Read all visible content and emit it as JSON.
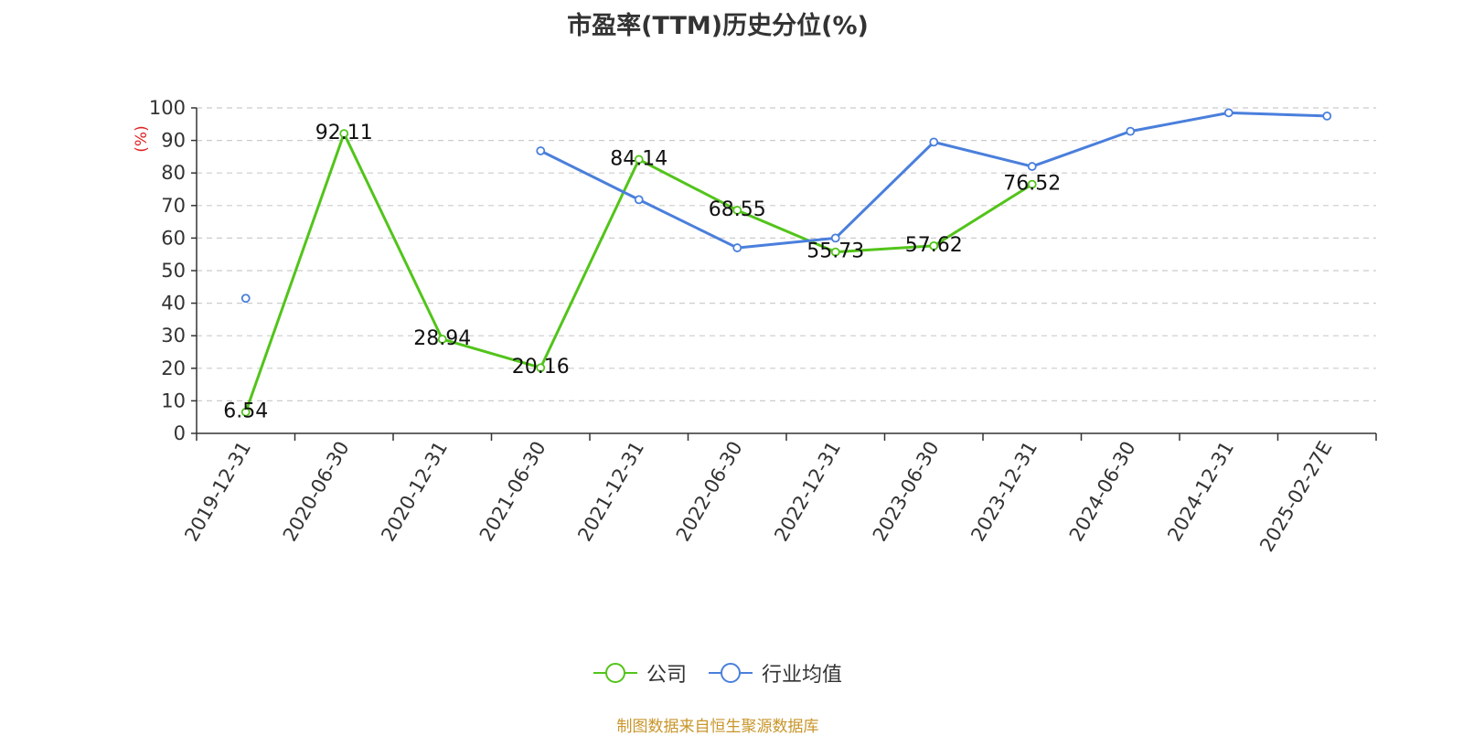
{
  "title": "市盈率(TTM)历史分位(%)",
  "source": "制图数据来自恒生聚源数据库",
  "colors": {
    "company": "#52c41a",
    "industry": "#4a7fdc",
    "unit": "#e02020"
  },
  "chart_data": {
    "type": "line",
    "title": "市盈率(TTM)历史分位(%)",
    "ylabel": "(%)",
    "ylim": [
      0,
      100
    ],
    "yticks": [
      0,
      10,
      20,
      30,
      40,
      50,
      60,
      70,
      80,
      90,
      100
    ],
    "grid": true,
    "legend_position": "bottom",
    "categories": [
      "2019-12-31",
      "2020-06-30",
      "2020-12-31",
      "2021-06-30",
      "2021-12-31",
      "2022-06-30",
      "2022-12-31",
      "2023-06-30",
      "2023-12-31",
      "2024-06-30",
      "2024-12-31",
      "2025-02-27E"
    ],
    "series": [
      {
        "name": "公司",
        "values": [
          6.54,
          92.11,
          28.94,
          20.16,
          84.14,
          68.55,
          55.73,
          57.62,
          76.52,
          null,
          null,
          null
        ],
        "labels": [
          "6.54",
          "92.11",
          "28.94",
          "20.16",
          "84.14",
          "68.55",
          "55.73",
          "57.62",
          "76.52",
          null,
          null,
          null
        ]
      },
      {
        "name": "行业均值",
        "values": [
          41.5,
          null,
          null,
          86.8,
          71.8,
          57.0,
          60.0,
          89.5,
          82.0,
          92.8,
          98.5,
          97.5
        ],
        "labels": null
      }
    ]
  }
}
